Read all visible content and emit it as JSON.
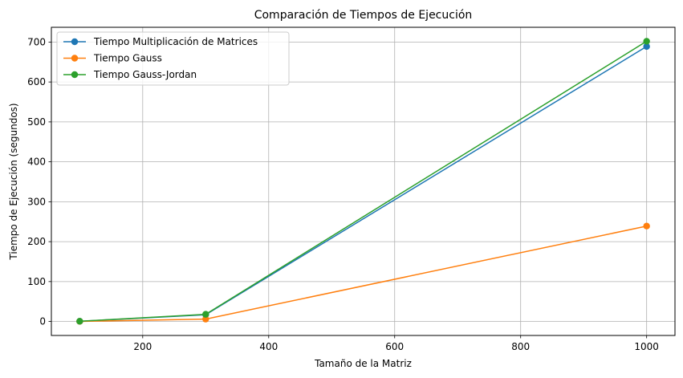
{
  "chart_data": {
    "type": "line",
    "title": "Comparación de Tiempos de Ejecución",
    "xlabel": "Tamaño de la Matriz",
    "ylabel": "Tiempo de Ejecución (segundos)",
    "x": [
      100,
      300,
      1000
    ],
    "xlim": [
      55,
      1045
    ],
    "ylim": [
      -35,
      737
    ],
    "xticks": [
      200,
      400,
      600,
      800,
      1000
    ],
    "yticks": [
      0,
      100,
      200,
      300,
      400,
      500,
      600,
      700
    ],
    "grid": true,
    "legend_position": "upper-left",
    "series": [
      {
        "name": "Tiempo Multiplicación de Matrices",
        "color": "#1f77b4",
        "values": [
          0.5,
          17,
          689
        ]
      },
      {
        "name": "Tiempo Gauss",
        "color": "#ff7f0e",
        "values": [
          0.3,
          6,
          239
        ]
      },
      {
        "name": "Tiempo Gauss-Jordan",
        "color": "#2ca02c",
        "values": [
          0.6,
          18,
          702
        ]
      }
    ]
  }
}
